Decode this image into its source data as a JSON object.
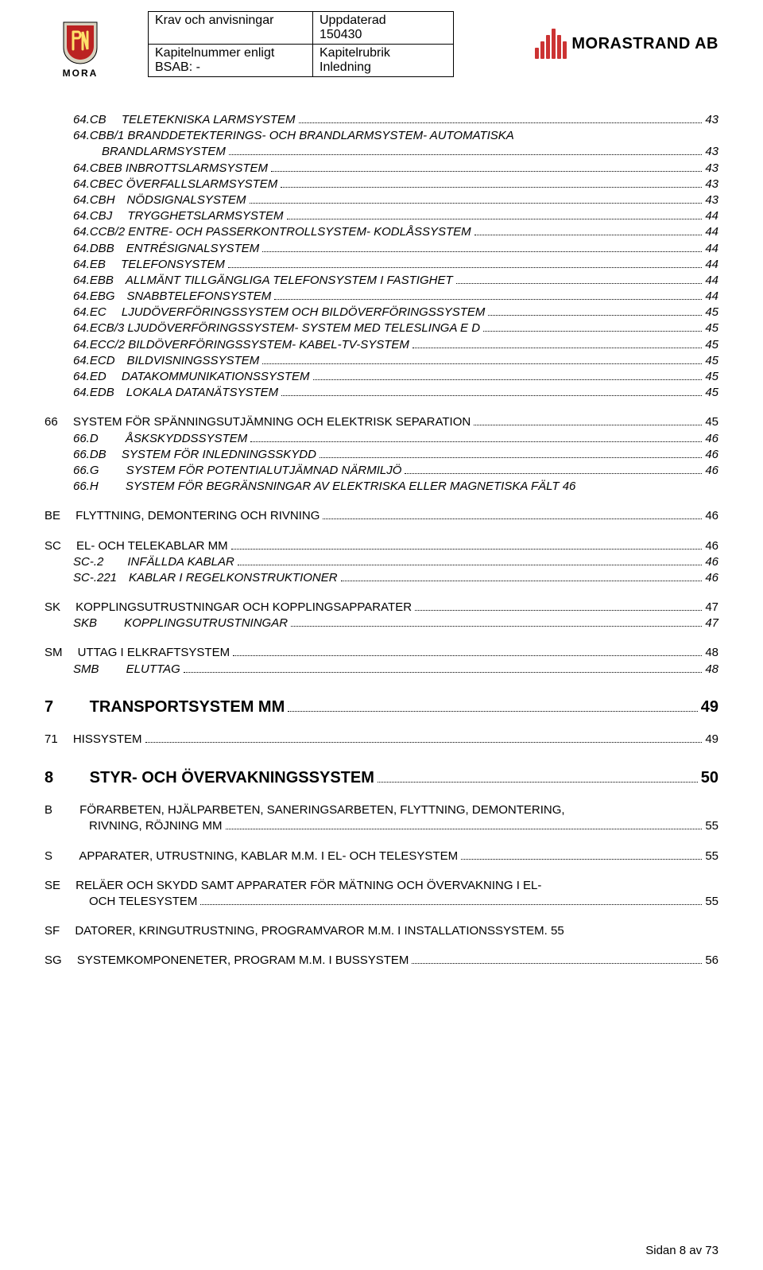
{
  "header": {
    "mora_label": "MORA",
    "cell_a1": "Krav och anvisningar",
    "cell_a2_line1": "Uppdaterad",
    "cell_a2_line2": "150430",
    "cell_b1_line1": "Kapitelnummer enligt",
    "cell_b1_line2": "BSAB: -",
    "cell_b2_line1": "Kapitelrubrik",
    "cell_b2_line2": "Inledning",
    "morastrand": "MORASTRAND AB"
  },
  "sections": [
    {
      "class": "section",
      "rows": [
        {
          "indent": "indent1",
          "italic": true,
          "label": "64.CB  TELETEKNISKA LARMSYSTEM",
          "page": "43"
        },
        {
          "indent": "indent1",
          "italic": true,
          "label": "64.CBB/1 BRANDDETEKTERINGS- OCH BRANDLARMSYSTEM- AUTOMATISKA",
          "noDots": true
        },
        {
          "indent": "indent2",
          "italic": true,
          "label": "BRANDLARMSYSTEM",
          "page": "43"
        },
        {
          "indent": "indent1",
          "italic": true,
          "label": "64.CBEB INBROTTSLARMSYSTEM",
          "page": "43"
        },
        {
          "indent": "indent1",
          "italic": true,
          "label": "64.CBEC ÖVERFALLSLARMSYSTEM",
          "page": "43"
        },
        {
          "indent": "indent1",
          "italic": true,
          "label": "64.CBH NÖDSIGNALSYSTEM",
          "page": "43"
        },
        {
          "indent": "indent1",
          "italic": true,
          "label": "64.CBJ  TRYGGHETSLARMSYSTEM",
          "page": "44"
        },
        {
          "indent": "indent1",
          "italic": true,
          "label": "64.CCB/2 ENTRE- OCH PASSERKONTROLLSYSTEM- KODLÅSSYSTEM",
          "page": "44"
        },
        {
          "indent": "indent1",
          "italic": true,
          "label": "64.DBB ENTRÉSIGNALSYSTEM",
          "page": "44"
        },
        {
          "indent": "indent1",
          "italic": true,
          "label": "64.EB  TELEFONSYSTEM",
          "page": "44"
        },
        {
          "indent": "indent1",
          "italic": true,
          "label": "64.EBB ALLMÄNT TILLGÄNGLIGA TELEFONSYSTEM I FASTIGHET",
          "page": "44"
        },
        {
          "indent": "indent1",
          "italic": true,
          "label": "64.EBG SNABBTELEFONSYSTEM",
          "page": "44"
        },
        {
          "indent": "indent1",
          "italic": true,
          "label": "64.EC  LJUDÖVERFÖRINGSSYSTEM OCH BILDÖVERFÖRINGSSYSTEM",
          "page": "45"
        },
        {
          "indent": "indent1",
          "italic": true,
          "label": "64.ECB/3 LJUDÖVERFÖRINGSSYSTEM- SYSTEM MED TELESLINGA E D",
          "page": "45"
        },
        {
          "indent": "indent1",
          "italic": true,
          "label": "64.ECC/2 BILDÖVERFÖRINGSSYSTEM- KABEL-TV-SYSTEM",
          "page": "45"
        },
        {
          "indent": "indent1",
          "italic": true,
          "label": "64.ECD BILDVISNINGSSYSTEM",
          "page": "45"
        },
        {
          "indent": "indent1",
          "italic": true,
          "label": "64.ED  DATAKOMMUNIKATIONSSYSTEM",
          "page": "45"
        },
        {
          "indent": "indent1",
          "italic": true,
          "label": "64.EDB LOKALA DATANÄTSYSTEM",
          "page": "45"
        }
      ]
    },
    {
      "class": "section",
      "rows": [
        {
          "indent": "",
          "italic": false,
          "label": "66  SYSTEM FÖR SPÄNNINGSUTJÄMNING OCH ELEKTRISK SEPARATION",
          "page": "45"
        },
        {
          "indent": "indent1",
          "italic": true,
          "label": "66.D   ÅSKSKYDDSSYSTEM",
          "page": "46"
        },
        {
          "indent": "indent1",
          "italic": true,
          "label": "66.DB  SYSTEM FÖR INLEDNINGSSKYDD",
          "page": "46"
        },
        {
          "indent": "indent1",
          "italic": true,
          "label": "66.G   SYSTEM FÖR POTENTIALUTJÄMNAD NÄRMILJÖ",
          "page": "46"
        },
        {
          "indent": "indent1",
          "italic": true,
          "label": "66.H   SYSTEM FÖR BEGRÄNSNINGAR AV ELEKTRISKA ELLER MAGNETISKA FÄLT 46",
          "noDots": true
        }
      ]
    },
    {
      "class": "section",
      "rows": [
        {
          "indent": "",
          "italic": false,
          "label": "BE  FLYTTNING, DEMONTERING OCH RIVNING",
          "page": "46"
        }
      ]
    },
    {
      "class": "section",
      "rows": [
        {
          "indent": "",
          "italic": false,
          "label": "SC  EL- OCH TELEKABLAR MM",
          "page": "46"
        },
        {
          "indent": "indent1",
          "italic": true,
          "label": "SC-.2  INFÄLLDA KABLAR",
          "page": "46"
        },
        {
          "indent": "indent1",
          "italic": true,
          "label": "SC-.221 KABLAR I REGELKONSTRUKTIONER",
          "page": "46"
        }
      ]
    },
    {
      "class": "section",
      "rows": [
        {
          "indent": "",
          "italic": false,
          "label": "SK  KOPPLINGSUTRUSTNINGAR OCH KOPPLINGSAPPARATER",
          "page": "47"
        },
        {
          "indent": "indent1",
          "italic": true,
          "label": "SKB   KOPPLINGSUTRUSTNINGAR",
          "page": "47"
        }
      ]
    },
    {
      "class": "section",
      "rows": [
        {
          "indent": "",
          "italic": false,
          "label": "SM  UTTAG I ELKRAFTSYSTEM",
          "page": "48"
        },
        {
          "indent": "indent1",
          "italic": true,
          "label": "SMB   ELUTTAG",
          "page": "48"
        }
      ]
    },
    {
      "class": "h1row",
      "rows": [
        {
          "indent": "",
          "italic": false,
          "label": "7   TRANSPORTSYSTEM MM",
          "page": "49",
          "h1": true
        }
      ]
    },
    {
      "class": "section",
      "rows": [
        {
          "indent": "",
          "italic": false,
          "label": "71  HISSYSTEM",
          "page": "49"
        }
      ]
    },
    {
      "class": "h1row",
      "rows": [
        {
          "indent": "",
          "italic": false,
          "label": "8   STYR- OCH ÖVERVAKNINGSSYSTEM",
          "page": "50",
          "h1": true
        }
      ]
    },
    {
      "class": "section",
      "rows": [
        {
          "indent": "",
          "italic": false,
          "label": "B   FÖRARBETEN, HJÄLPARBETEN, SANERINGSARBETEN, FLYTTNING, DEMONTERING,",
          "noDots": true
        },
        {
          "indent": "indent1b",
          "italic": false,
          "label": "RIVNING, RÖJNING MM",
          "page": "55"
        }
      ]
    },
    {
      "class": "section",
      "rows": [
        {
          "indent": "",
          "italic": false,
          "label": "S   APPARATER, UTRUSTNING, KABLAR M.M. I EL- OCH TELESYSTEM",
          "page": "55"
        }
      ]
    },
    {
      "class": "section",
      "rows": [
        {
          "indent": "",
          "italic": false,
          "label": "SE  RELÄER OCH SKYDD SAMT APPARATER FÖR MÄTNING OCH ÖVERVAKNING I EL-",
          "noDots": true
        },
        {
          "indent": "indent1b",
          "italic": false,
          "label": "OCH TELESYSTEM",
          "page": "55"
        }
      ]
    },
    {
      "class": "section",
      "rows": [
        {
          "indent": "",
          "italic": false,
          "label": "SF  DATORER, KRINGUTRUSTNING, PROGRAMVAROR M.M. I INSTALLATIONSSYSTEM. 55",
          "noDots": true
        }
      ]
    },
    {
      "class": "section",
      "rows": [
        {
          "indent": "",
          "italic": false,
          "label": "SG  SYSTEMKOMPONENETER, PROGRAM M.M. I BUSSYSTEM",
          "page": "56"
        }
      ]
    }
  ],
  "footer": "Sidan 8 av 73"
}
